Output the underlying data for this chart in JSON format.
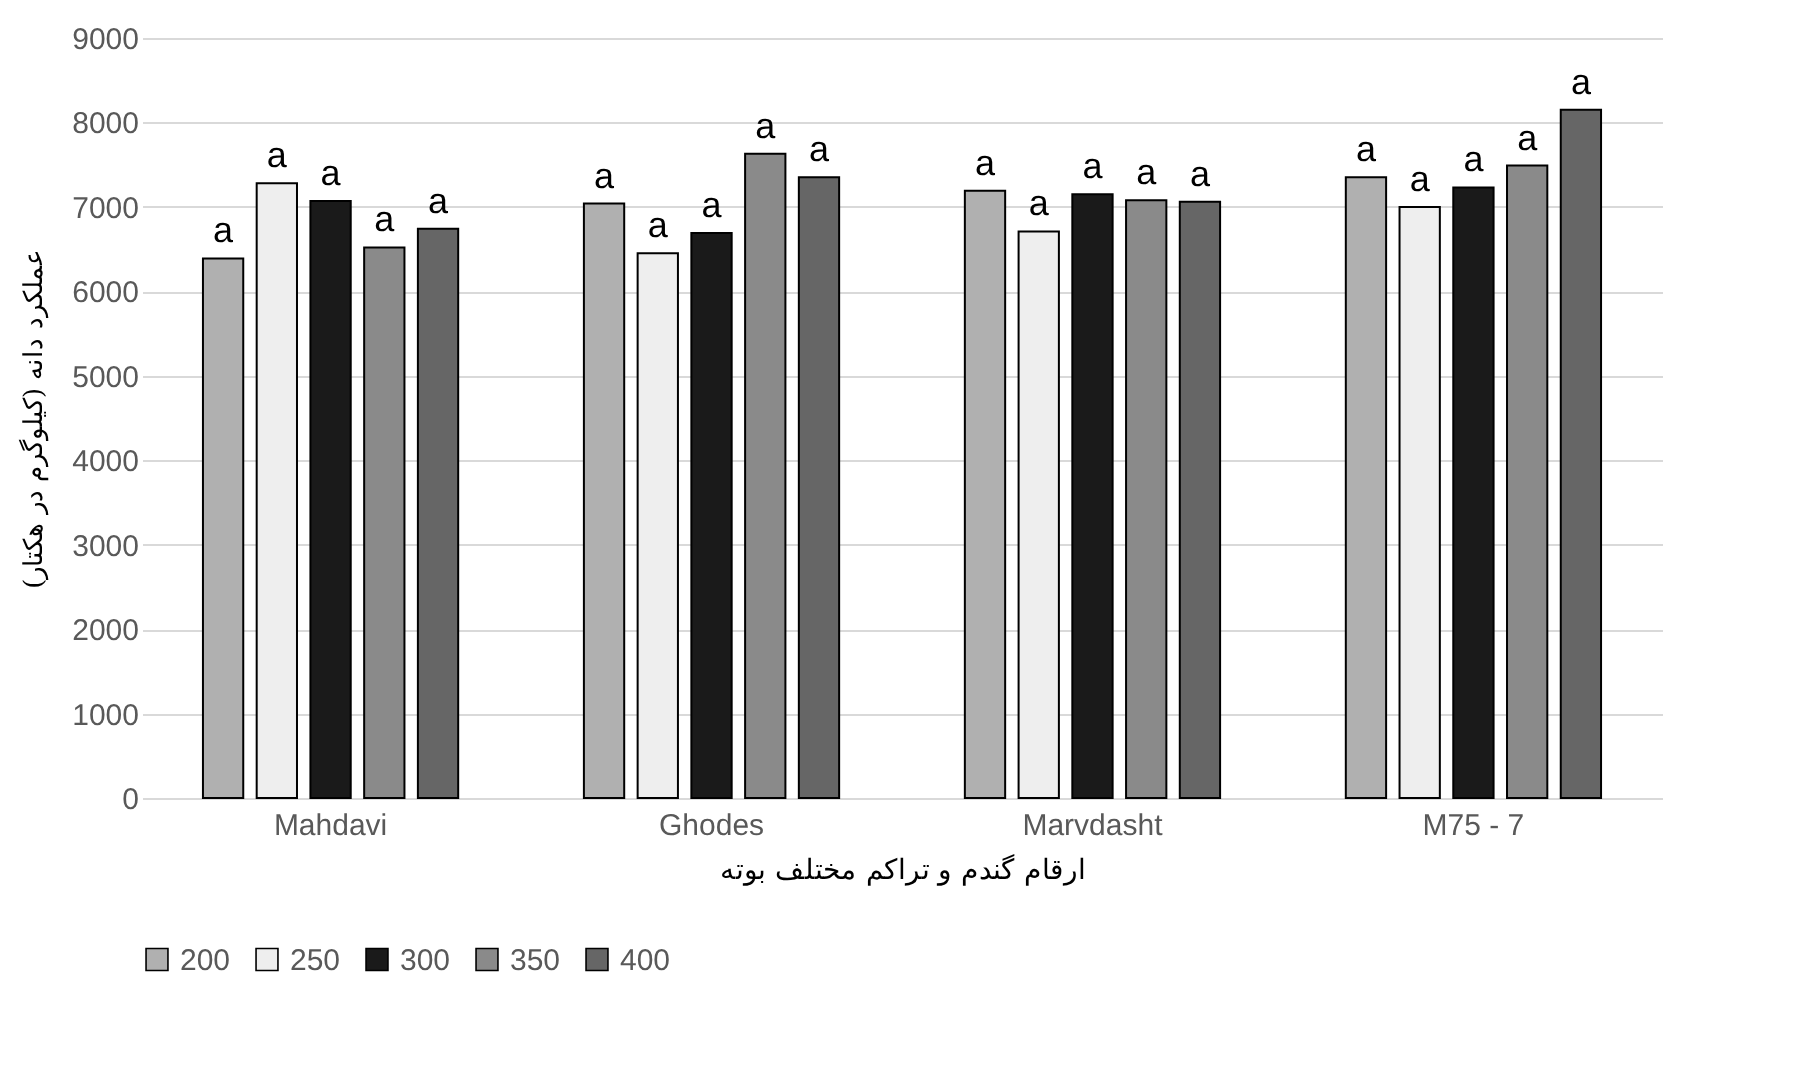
{
  "chart_data": {
    "type": "bar",
    "xlabel": "ارقام گندم و تراکم مختلف بوته",
    "ylabel": "عملکرد دانه (کیلوگرم در هکتار)",
    "categories": [
      "Mahdavi",
      "Ghodes",
      "Marvdasht",
      "M75 - 7"
    ],
    "series": [
      {
        "name": "200",
        "color": "#b0b0b0",
        "values": [
          6390,
          7040,
          7190,
          7350
        ],
        "value_labels": [
          "a",
          "a",
          "a",
          "a"
        ]
      },
      {
        "name": "250",
        "color": "#eeeeee",
        "values": [
          7280,
          6450,
          6710,
          7000
        ],
        "value_labels": [
          "a",
          "a",
          "a",
          "a"
        ]
      },
      {
        "name": "300",
        "color": "#1a1a1a",
        "values": [
          7070,
          6690,
          7150,
          7230
        ],
        "value_labels": [
          "a",
          "a",
          "a",
          "a"
        ]
      },
      {
        "name": "350",
        "color": "#8a8a8a",
        "values": [
          6520,
          7630,
          7080,
          7490
        ],
        "value_labels": [
          "a",
          "a",
          "a",
          "a"
        ]
      },
      {
        "name": "400",
        "color": "#666666",
        "values": [
          6740,
          7350,
          7060,
          8150
        ],
        "value_labels": [
          "a",
          "a",
          "a",
          "a"
        ]
      }
    ],
    "ylim": [
      0,
      9000
    ],
    "yticks": [
      0,
      1000,
      2000,
      3000,
      4000,
      5000,
      6000,
      7000,
      8000,
      9000
    ],
    "grid": "y",
    "legend": "bottom"
  }
}
